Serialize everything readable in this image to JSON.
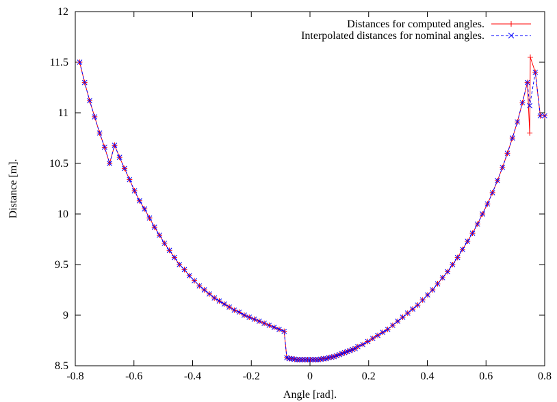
{
  "chart_data": {
    "type": "line",
    "title": "",
    "xlabel": "Angle [rad].",
    "ylabel": "Distance [m].",
    "xlim": [
      -0.8,
      0.8
    ],
    "ylim": [
      8.5,
      12
    ],
    "xticks": [
      -0.8,
      -0.6,
      -0.4,
      -0.2,
      0,
      0.2,
      0.4,
      0.6,
      0.8
    ],
    "yticks": [
      8.5,
      9,
      9.5,
      10,
      10.5,
      11,
      11.5,
      12
    ],
    "xtick_labels": [
      "-0.8",
      "-0.6",
      "-0.4",
      "-0.2",
      "0",
      "0.2",
      "0.4",
      "0.6",
      "0.8"
    ],
    "ytick_labels": [
      "8.5",
      "9",
      "9.5",
      "10",
      "10.5",
      "11",
      "11.5",
      "12"
    ],
    "grid": false,
    "legend_position": "top-right",
    "colors": {
      "series1": "#ff0000",
      "series2": "#0000ff"
    },
    "series": [
      {
        "name": "Distances for computed angles.",
        "marker": "plus",
        "line": "solid",
        "points": [
          [
            -0.785,
            11.5
          ],
          [
            -0.768,
            11.3
          ],
          [
            -0.751,
            11.12
          ],
          [
            -0.734,
            10.96
          ],
          [
            -0.717,
            10.8
          ],
          [
            -0.7,
            10.66
          ],
          [
            -0.683,
            10.5
          ],
          [
            -0.666,
            10.68
          ],
          [
            -0.649,
            10.56
          ],
          [
            -0.632,
            10.45
          ],
          [
            -0.615,
            10.34
          ],
          [
            -0.598,
            10.23
          ],
          [
            -0.581,
            10.13
          ],
          [
            -0.564,
            10.05
          ],
          [
            -0.547,
            9.96
          ],
          [
            -0.53,
            9.87
          ],
          [
            -0.513,
            9.79
          ],
          [
            -0.496,
            9.71
          ],
          [
            -0.479,
            9.64
          ],
          [
            -0.462,
            9.57
          ],
          [
            -0.445,
            9.5
          ],
          [
            -0.428,
            9.45
          ],
          [
            -0.411,
            9.39
          ],
          [
            -0.394,
            9.34
          ],
          [
            -0.377,
            9.29
          ],
          [
            -0.36,
            9.25
          ],
          [
            -0.343,
            9.21
          ],
          [
            -0.326,
            9.17
          ],
          [
            -0.309,
            9.14
          ],
          [
            -0.292,
            9.11
          ],
          [
            -0.275,
            9.08
          ],
          [
            -0.258,
            9.05
          ],
          [
            -0.241,
            9.03
          ],
          [
            -0.224,
            9.0
          ],
          [
            -0.207,
            8.98
          ],
          [
            -0.19,
            8.96
          ],
          [
            -0.173,
            8.94
          ],
          [
            -0.156,
            8.92
          ],
          [
            -0.139,
            8.9
          ],
          [
            -0.122,
            8.88
          ],
          [
            -0.105,
            8.86
          ],
          [
            -0.088,
            8.84
          ],
          [
            -0.079,
            8.58
          ],
          [
            -0.071,
            8.57
          ],
          [
            -0.062,
            8.57
          ],
          [
            -0.053,
            8.565
          ],
          [
            -0.044,
            8.56
          ],
          [
            -0.035,
            8.56
          ],
          [
            -0.026,
            8.56
          ],
          [
            -0.017,
            8.56
          ],
          [
            -0.008,
            8.56
          ],
          [
            0.001,
            8.56
          ],
          [
            0.01,
            8.56
          ],
          [
            0.019,
            8.56
          ],
          [
            0.028,
            8.56
          ],
          [
            0.037,
            8.565
          ],
          [
            0.046,
            8.57
          ],
          [
            0.055,
            8.57
          ],
          [
            0.064,
            8.58
          ],
          [
            0.073,
            8.585
          ],
          [
            0.082,
            8.59
          ],
          [
            0.091,
            8.6
          ],
          [
            0.1,
            8.61
          ],
          [
            0.109,
            8.62
          ],
          [
            0.118,
            8.63
          ],
          [
            0.127,
            8.64
          ],
          [
            0.136,
            8.65
          ],
          [
            0.145,
            8.66
          ],
          [
            0.154,
            8.67
          ],
          [
            0.163,
            8.69
          ],
          [
            0.18,
            8.71
          ],
          [
            0.197,
            8.74
          ],
          [
            0.214,
            8.77
          ],
          [
            0.231,
            8.8
          ],
          [
            0.248,
            8.83
          ],
          [
            0.265,
            8.86
          ],
          [
            0.282,
            8.9
          ],
          [
            0.299,
            8.94
          ],
          [
            0.316,
            8.98
          ],
          [
            0.333,
            9.02
          ],
          [
            0.35,
            9.06
          ],
          [
            0.367,
            9.1
          ],
          [
            0.384,
            9.15
          ],
          [
            0.401,
            9.2
          ],
          [
            0.418,
            9.25
          ],
          [
            0.435,
            9.31
          ],
          [
            0.452,
            9.37
          ],
          [
            0.469,
            9.43
          ],
          [
            0.486,
            9.5
          ],
          [
            0.503,
            9.57
          ],
          [
            0.52,
            9.65
          ],
          [
            0.537,
            9.73
          ],
          [
            0.554,
            9.81
          ],
          [
            0.571,
            9.9
          ],
          [
            0.588,
            10.0
          ],
          [
            0.605,
            10.1
          ],
          [
            0.622,
            10.21
          ],
          [
            0.639,
            10.33
          ],
          [
            0.656,
            10.46
          ],
          [
            0.673,
            10.6
          ],
          [
            0.69,
            10.75
          ],
          [
            0.707,
            10.91
          ],
          [
            0.724,
            11.1
          ],
          [
            0.741,
            11.3
          ],
          [
            0.749,
            10.8
          ],
          [
            0.751,
            11.55
          ],
          [
            0.768,
            11.4
          ],
          [
            0.785,
            10.97
          ],
          [
            0.8,
            10.97
          ]
        ]
      },
      {
        "name": "Interpolated distances for nominal angles.",
        "marker": "cross",
        "line": "dashed",
        "points": [
          [
            -0.785,
            11.5
          ],
          [
            -0.768,
            11.3
          ],
          [
            -0.751,
            11.12
          ],
          [
            -0.734,
            10.96
          ],
          [
            -0.717,
            10.8
          ],
          [
            -0.7,
            10.66
          ],
          [
            -0.683,
            10.5
          ],
          [
            -0.666,
            10.68
          ],
          [
            -0.649,
            10.56
          ],
          [
            -0.632,
            10.45
          ],
          [
            -0.615,
            10.34
          ],
          [
            -0.598,
            10.23
          ],
          [
            -0.581,
            10.13
          ],
          [
            -0.564,
            10.05
          ],
          [
            -0.547,
            9.96
          ],
          [
            -0.53,
            9.87
          ],
          [
            -0.513,
            9.79
          ],
          [
            -0.496,
            9.71
          ],
          [
            -0.479,
            9.64
          ],
          [
            -0.462,
            9.57
          ],
          [
            -0.445,
            9.5
          ],
          [
            -0.428,
            9.45
          ],
          [
            -0.411,
            9.39
          ],
          [
            -0.394,
            9.34
          ],
          [
            -0.377,
            9.29
          ],
          [
            -0.36,
            9.25
          ],
          [
            -0.343,
            9.21
          ],
          [
            -0.326,
            9.17
          ],
          [
            -0.309,
            9.14
          ],
          [
            -0.292,
            9.11
          ],
          [
            -0.275,
            9.08
          ],
          [
            -0.258,
            9.05
          ],
          [
            -0.241,
            9.03
          ],
          [
            -0.224,
            9.0
          ],
          [
            -0.207,
            8.98
          ],
          [
            -0.19,
            8.96
          ],
          [
            -0.173,
            8.94
          ],
          [
            -0.156,
            8.92
          ],
          [
            -0.139,
            8.9
          ],
          [
            -0.122,
            8.88
          ],
          [
            -0.105,
            8.86
          ],
          [
            -0.088,
            8.84
          ],
          [
            -0.079,
            8.58
          ],
          [
            -0.071,
            8.57
          ],
          [
            -0.062,
            8.57
          ],
          [
            -0.053,
            8.565
          ],
          [
            -0.044,
            8.56
          ],
          [
            -0.035,
            8.56
          ],
          [
            -0.026,
            8.56
          ],
          [
            -0.017,
            8.56
          ],
          [
            -0.008,
            8.56
          ],
          [
            0.001,
            8.56
          ],
          [
            0.01,
            8.56
          ],
          [
            0.019,
            8.56
          ],
          [
            0.028,
            8.56
          ],
          [
            0.037,
            8.565
          ],
          [
            0.046,
            8.57
          ],
          [
            0.055,
            8.57
          ],
          [
            0.064,
            8.58
          ],
          [
            0.073,
            8.585
          ],
          [
            0.082,
            8.59
          ],
          [
            0.091,
            8.6
          ],
          [
            0.1,
            8.61
          ],
          [
            0.109,
            8.62
          ],
          [
            0.118,
            8.63
          ],
          [
            0.127,
            8.64
          ],
          [
            0.136,
            8.65
          ],
          [
            0.145,
            8.66
          ],
          [
            0.154,
            8.67
          ],
          [
            0.163,
            8.69
          ],
          [
            0.18,
            8.71
          ],
          [
            0.197,
            8.74
          ],
          [
            0.214,
            8.77
          ],
          [
            0.231,
            8.8
          ],
          [
            0.248,
            8.83
          ],
          [
            0.265,
            8.86
          ],
          [
            0.282,
            8.9
          ],
          [
            0.299,
            8.94
          ],
          [
            0.316,
            8.98
          ],
          [
            0.333,
            9.02
          ],
          [
            0.35,
            9.06
          ],
          [
            0.367,
            9.1
          ],
          [
            0.384,
            9.15
          ],
          [
            0.401,
            9.2
          ],
          [
            0.418,
            9.25
          ],
          [
            0.435,
            9.31
          ],
          [
            0.452,
            9.37
          ],
          [
            0.469,
            9.43
          ],
          [
            0.486,
            9.5
          ],
          [
            0.503,
            9.57
          ],
          [
            0.52,
            9.65
          ],
          [
            0.537,
            9.73
          ],
          [
            0.554,
            9.81
          ],
          [
            0.571,
            9.9
          ],
          [
            0.588,
            10.0
          ],
          [
            0.605,
            10.1
          ],
          [
            0.622,
            10.21
          ],
          [
            0.639,
            10.33
          ],
          [
            0.656,
            10.46
          ],
          [
            0.673,
            10.6
          ],
          [
            0.69,
            10.75
          ],
          [
            0.707,
            10.91
          ],
          [
            0.724,
            11.1
          ],
          [
            0.741,
            11.3
          ],
          [
            0.749,
            11.07
          ],
          [
            0.768,
            11.4
          ],
          [
            0.785,
            10.97
          ],
          [
            0.8,
            10.97
          ]
        ]
      }
    ]
  }
}
